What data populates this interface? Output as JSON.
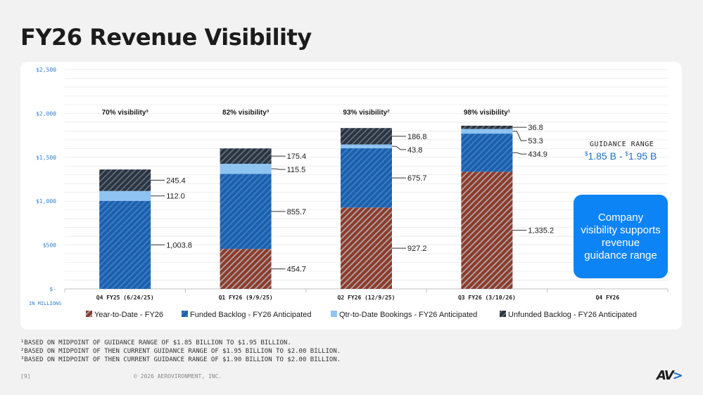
{
  "page": {
    "title": "FY26 Revenue Visibility",
    "page_number": "[9]",
    "copyright": "© 2026 AEROVIRONMENT, INC.",
    "logo_text": "AV",
    "footnotes": [
      "¹BASED ON MIDPOINT OF GUIDANCE RANGE OF $1.85 BILLION TO $1.95 BILLION.",
      "²BASED ON MIDPOINT OF THEN CURRENT GUIDANCE RANGE OF $1.95 BILLION TO $2.00 BILLION.",
      "³BASED ON MIDPOINT OF THEN CURRENT GUIDANCE RANGE OF $1.90 BILLION TO $2.00 BILLION."
    ],
    "guidance": {
      "title": "GUIDANCE RANGE",
      "low_currency": "$",
      "low": "1.85 B - ",
      "high_currency": "$",
      "high": "1.95 B"
    },
    "callout": "Company visibility supports revenue guidance range"
  },
  "chart_data": {
    "type": "bar",
    "stacked": true,
    "categories": [
      "Q4 FY25 (6/24/25)",
      "Q1 FY26 (9/9/25)",
      "Q2 FY26 (12/9/25)",
      "Q3 FY26 (3/10/26)",
      "Q4 FY26"
    ],
    "visibility_labels": [
      "70% visibility³",
      "82% visibility³",
      "93% visibility²",
      "98% visibility¹",
      ""
    ],
    "series": [
      {
        "name": "Year-to-Date - FY26",
        "values": [
          0,
          454.7,
          927.2,
          1335.2,
          0
        ],
        "labels": [
          "",
          "454.7",
          "927.2",
          "1,335.2",
          ""
        ],
        "color": "#8c3a2b",
        "stripe": "#b5b5b5"
      },
      {
        "name": "Funded Backlog - FY26 Anticipated",
        "values": [
          1003.8,
          855.7,
          675.7,
          434.9,
          0
        ],
        "labels": [
          "1,003.8",
          "855.7",
          "675.7",
          "434.9",
          ""
        ],
        "color": "#1f5fa8",
        "stripe": "#3a86d4"
      },
      {
        "name": "Qtr-to-Date Bookings - FY26 Anticipated",
        "values": [
          112.0,
          115.5,
          43.8,
          53.3,
          0
        ],
        "labels": [
          "112.0",
          "115.5",
          "43.8",
          "53.3",
          ""
        ],
        "color": "#8ec3f2",
        "stripe": "#8ec3f2"
      },
      {
        "name": "Unfunded Backlog  - FY26 Anticipated",
        "values": [
          245.4,
          175.4,
          186.8,
          36.8,
          0
        ],
        "labels": [
          "245.4",
          "175.4",
          "186.8",
          "36.8",
          ""
        ],
        "color": "#2a3440",
        "stripe": "#6b7785"
      }
    ],
    "ylim": [
      0,
      2500
    ],
    "yticks": [
      0,
      500,
      1000,
      1500,
      2000,
      2500
    ],
    "ytick_labels": [
      "$-",
      "$500",
      "$1,000",
      "$1,500",
      "$2,000",
      "$2,500"
    ],
    "yunit": "IN MILLIONS",
    "legend_position": "bottom"
  }
}
